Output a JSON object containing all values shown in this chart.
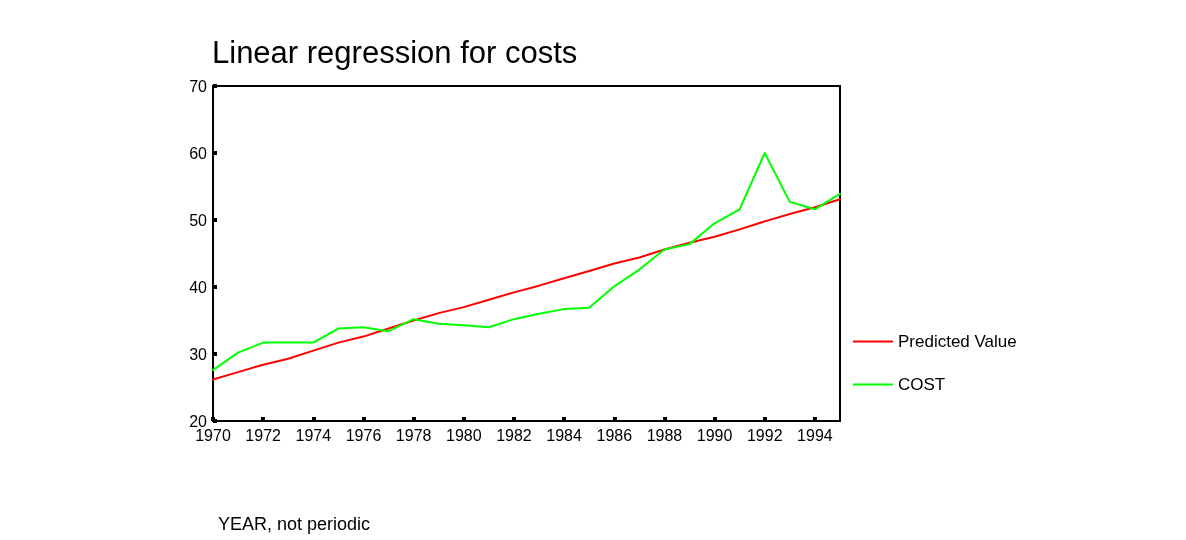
{
  "chart_data": {
    "type": "line",
    "title": "Linear regression for costs",
    "xlabel": "YEAR, not periodic",
    "x": [
      1970,
      1971,
      1972,
      1973,
      1974,
      1975,
      1976,
      1977,
      1978,
      1979,
      1980,
      1981,
      1982,
      1983,
      1984,
      1985,
      1986,
      1987,
      1988,
      1989,
      1990,
      1991,
      1992,
      1993,
      1994,
      1995
    ],
    "series": [
      {
        "name": "Predicted Value",
        "color": "#ff0000",
        "values": [
          26.2,
          27.3,
          28.4,
          29.3,
          30.5,
          31.7,
          32.6,
          33.8,
          35.0,
          36.1,
          37.0,
          38.1,
          39.2,
          40.2,
          41.3,
          42.4,
          43.5,
          44.4,
          45.6,
          46.6,
          47.5,
          48.6,
          49.8,
          50.9,
          51.9,
          53.1
        ]
      },
      {
        "name": "COST",
        "color": "#00ff00",
        "values": [
          27.6,
          30.2,
          31.7,
          31.7,
          31.7,
          33.8,
          34.0,
          33.4,
          35.2,
          34.5,
          34.3,
          34.0,
          35.2,
          36.0,
          36.7,
          36.9,
          40.1,
          42.6,
          45.6,
          46.4,
          49.5,
          51.6,
          60.0,
          52.7,
          51.6,
          53.9
        ]
      }
    ],
    "xlim": [
      1970,
      1995
    ],
    "xticks": [
      1970,
      1972,
      1974,
      1976,
      1978,
      1980,
      1982,
      1984,
      1986,
      1988,
      1990,
      1992,
      1994
    ],
    "ylim": [
      20,
      70
    ],
    "yticks": [
      20,
      30,
      40,
      50,
      60,
      70
    ],
    "grid": false,
    "legend": "right",
    "marker": "none",
    "line_style": "solid"
  }
}
